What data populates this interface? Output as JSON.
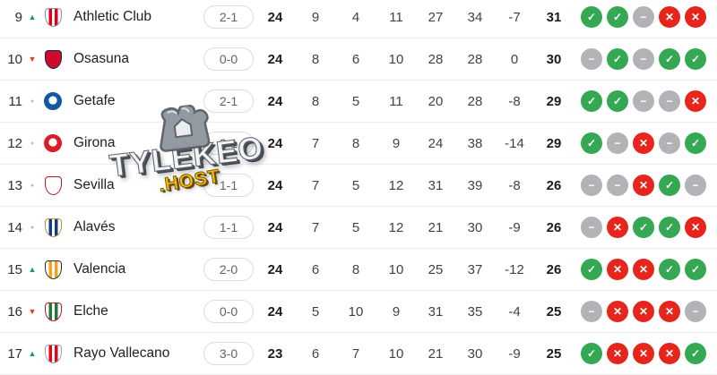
{
  "watermark": {
    "title": "TYLEKEO",
    "subtitle": ".HOST"
  },
  "colors": {
    "form_win_green": "#34a853",
    "form_draw_gray": "#b1b3b6",
    "form_loss_red": "#e6251c",
    "rank_up_green": "#0fa04e",
    "rank_down_red": "#e23b24",
    "rank_same_gray": "#b9bcc1",
    "pill_border": "#dadce0",
    "row_divider": "#edeef0"
  },
  "table": {
    "rows": [
      {
        "position": "9",
        "movement": "up",
        "team": "Athletic Club",
        "last_score": "2-1",
        "played": "24",
        "wins": "9",
        "draws": "4",
        "losses": "11",
        "goals_for": "27",
        "goals_against": "34",
        "goal_diff": "-7",
        "points": "31",
        "form": [
          "W",
          "W",
          "D",
          "L",
          "L"
        ],
        "crest": {
          "shape": "shield",
          "colors": [
            "#ffffff",
            "#e0001a",
            "#8a8f94"
          ]
        }
      },
      {
        "position": "10",
        "movement": "down",
        "team": "Osasuna",
        "last_score": "0-0",
        "played": "24",
        "wins": "8",
        "draws": "6",
        "losses": "10",
        "goals_for": "28",
        "goals_against": "28",
        "goal_diff": "0",
        "points": "30",
        "form": [
          "D",
          "W",
          "D",
          "W",
          "W"
        ],
        "crest": {
          "shape": "shield",
          "colors": [
            "#cf0a2c",
            "#cf0a2c",
            "#10284b"
          ]
        }
      },
      {
        "position": "11",
        "movement": "same",
        "team": "Getafe",
        "last_score": "2-1",
        "played": "24",
        "wins": "8",
        "draws": "5",
        "losses": "11",
        "goals_for": "20",
        "goals_against": "28",
        "goal_diff": "-8",
        "points": "29",
        "form": [
          "W",
          "W",
          "D",
          "D",
          "L"
        ],
        "crest": {
          "shape": "circle",
          "colors": [
            "#1457a0",
            "#ffffff",
            "#1457a0"
          ]
        }
      },
      {
        "position": "12",
        "movement": "same",
        "team": "Girona",
        "last_score": "2-1",
        "played": "24",
        "wins": "7",
        "draws": "8",
        "losses": "9",
        "goals_for": "24",
        "goals_against": "38",
        "goal_diff": "-14",
        "points": "29",
        "form": [
          "W",
          "D",
          "L",
          "D",
          "W"
        ],
        "crest": {
          "shape": "circle",
          "colors": [
            "#d81e28",
            "#ffffff",
            "#d81e28"
          ]
        }
      },
      {
        "position": "13",
        "movement": "same",
        "team": "Sevilla",
        "last_score": "1-1",
        "played": "24",
        "wins": "7",
        "draws": "5",
        "losses": "12",
        "goals_for": "31",
        "goals_against": "39",
        "goal_diff": "-8",
        "points": "26",
        "form": [
          "D",
          "D",
          "L",
          "W",
          "D"
        ],
        "crest": {
          "shape": "shield",
          "colors": [
            "#ffffff",
            "#ffffff",
            "#c81025"
          ]
        }
      },
      {
        "position": "14",
        "movement": "same",
        "team": "Alavés",
        "last_score": "1-1",
        "played": "24",
        "wins": "7",
        "draws": "5",
        "losses": "12",
        "goals_for": "21",
        "goals_against": "30",
        "goal_diff": "-9",
        "points": "26",
        "form": [
          "D",
          "L",
          "W",
          "W",
          "L"
        ],
        "crest": {
          "shape": "shield",
          "colors": [
            "#ffffff",
            "#143c8c",
            "#b8922e"
          ]
        }
      },
      {
        "position": "15",
        "movement": "up",
        "team": "Valencia",
        "last_score": "2-0",
        "played": "24",
        "wins": "6",
        "draws": "8",
        "losses": "10",
        "goals_for": "25",
        "goals_against": "37",
        "goal_diff": "-12",
        "points": "26",
        "form": [
          "W",
          "L",
          "L",
          "W",
          "W"
        ],
        "crest": {
          "shape": "shield",
          "colors": [
            "#ffffff",
            "#f8a01c",
            "#2b2b2b"
          ]
        }
      },
      {
        "position": "16",
        "movement": "down",
        "team": "Elche",
        "last_score": "0-0",
        "played": "24",
        "wins": "5",
        "draws": "10",
        "losses": "9",
        "goals_for": "31",
        "goals_against": "35",
        "goal_diff": "-4",
        "points": "25",
        "form": [
          "D",
          "L",
          "L",
          "L",
          "D"
        ],
        "crest": {
          "shape": "shield",
          "colors": [
            "#ffffff",
            "#1e7a34",
            "#c8102e"
          ]
        }
      },
      {
        "position": "17",
        "movement": "up",
        "team": "Rayo Vallecano",
        "last_score": "3-0",
        "played": "23",
        "wins": "6",
        "draws": "7",
        "losses": "10",
        "goals_for": "21",
        "goals_against": "30",
        "goal_diff": "-9",
        "points": "25",
        "form": [
          "W",
          "L",
          "L",
          "L",
          "W"
        ],
        "crest": {
          "shape": "shield",
          "colors": [
            "#ffffff",
            "#e30613",
            "#9aa0a6"
          ]
        }
      }
    ]
  }
}
